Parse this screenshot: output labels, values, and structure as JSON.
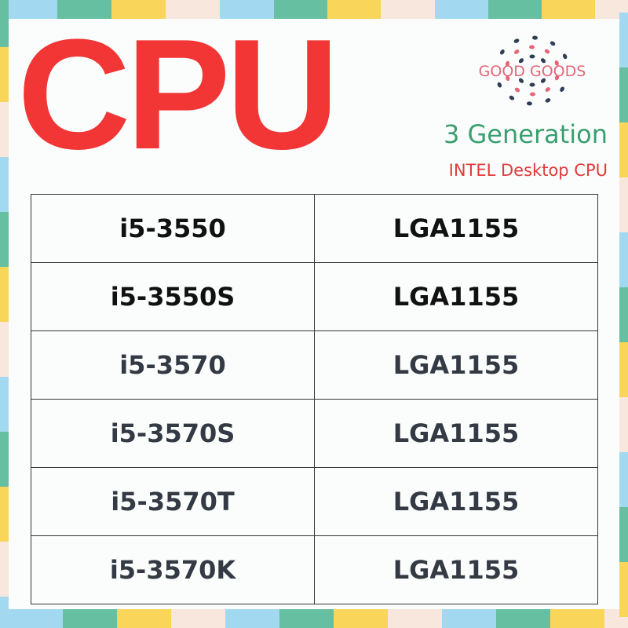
{
  "title": "CPU",
  "logo": {
    "text": "GOOD GOODS"
  },
  "generation": "3 Generation",
  "subtitle": "INTEL Desktop CPU",
  "colors": {
    "title": "#f23535",
    "generation": "#3a9f6e",
    "subtitle": "#e03a3a",
    "border": [
      "#a3d9f0",
      "#66bfa0",
      "#f9d55a",
      "#f7e7dc"
    ]
  },
  "rows": [
    {
      "model": "i5-3550",
      "socket": "LGA1155"
    },
    {
      "model": "i5-3550S",
      "socket": "LGA1155"
    },
    {
      "model": "i5-3570",
      "socket": "LGA1155"
    },
    {
      "model": "i5-3570S",
      "socket": "LGA1155"
    },
    {
      "model": "i5-3570T",
      "socket": "LGA1155"
    },
    {
      "model": "i5-3570K",
      "socket": "LGA1155"
    }
  ]
}
